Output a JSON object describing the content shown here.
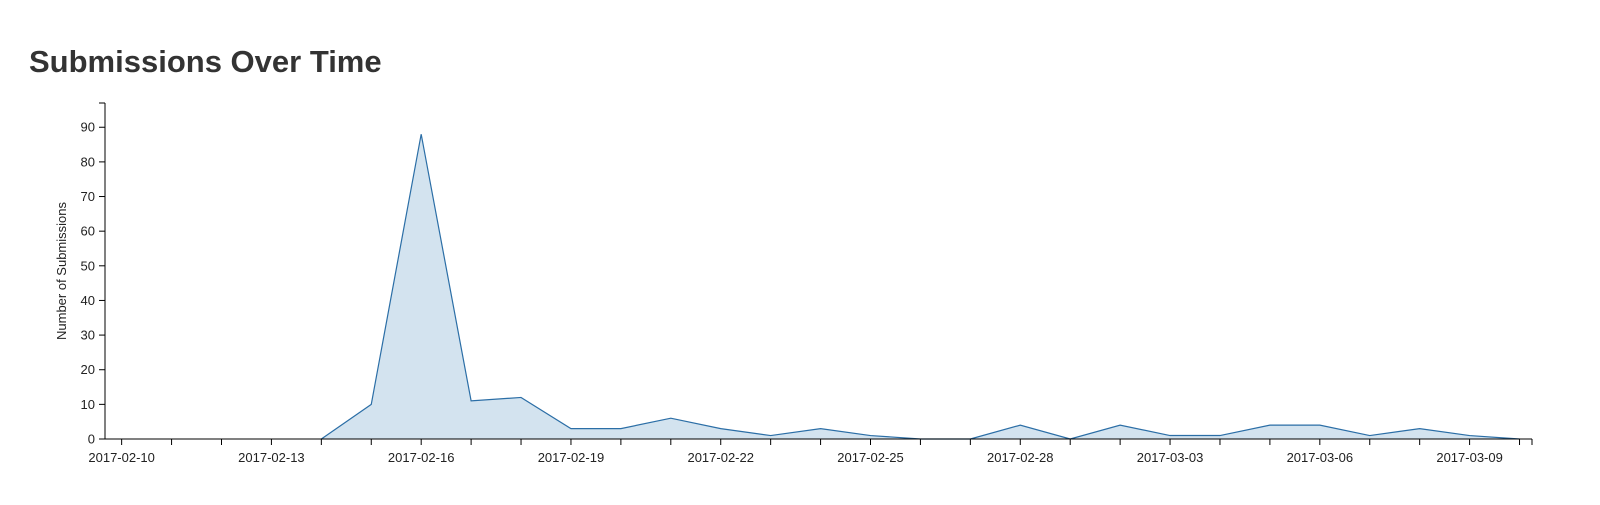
{
  "chart_data": {
    "type": "area",
    "title": "Submissions Over Time",
    "y_label": "Number of Submissions",
    "x": [
      "2017-02-14",
      "2017-02-15",
      "2017-02-16",
      "2017-02-17",
      "2017-02-18",
      "2017-02-19",
      "2017-02-20",
      "2017-02-21",
      "2017-02-22",
      "2017-02-23",
      "2017-02-24",
      "2017-02-25",
      "2017-02-26",
      "2017-02-27",
      "2017-02-28",
      "2017-03-01",
      "2017-03-02",
      "2017-03-03",
      "2017-03-04",
      "2017-03-05",
      "2017-03-06",
      "2017-03-07",
      "2017-03-08",
      "2017-03-09",
      "2017-03-10"
    ],
    "values": [
      0,
      10,
      88,
      11,
      12,
      3,
      3,
      6,
      3,
      1,
      3,
      1,
      0,
      0,
      4,
      0,
      4,
      1,
      1,
      4,
      4,
      1,
      3,
      1,
      0
    ],
    "color": "#2b6ea6",
    "fill": "#d3e3ef",
    "xlim": [
      "2017-02-09T16:00Z",
      "2017-03-10T06:00Z"
    ],
    "xticks": [
      "2017-02-10",
      "2017-02-13",
      "2017-02-16",
      "2017-02-19",
      "2017-02-22",
      "2017-02-25",
      "2017-02-28",
      "2017-03-03",
      "2017-03-06",
      "2017-03-09"
    ],
    "xminorticks": [
      "2017-02-11",
      "2017-02-12",
      "2017-02-14",
      "2017-02-15",
      "2017-02-17",
      "2017-02-18",
      "2017-02-20",
      "2017-02-21",
      "2017-02-23",
      "2017-02-24",
      "2017-02-26",
      "2017-02-27",
      "2017-03-01",
      "2017-03-02",
      "2017-03-04",
      "2017-03-05",
      "2017-03-07",
      "2017-03-08",
      "2017-03-10"
    ],
    "ylim": [
      0,
      97
    ],
    "yticks": [
      0,
      10,
      20,
      30,
      40,
      50,
      60,
      70,
      80,
      90
    ]
  }
}
